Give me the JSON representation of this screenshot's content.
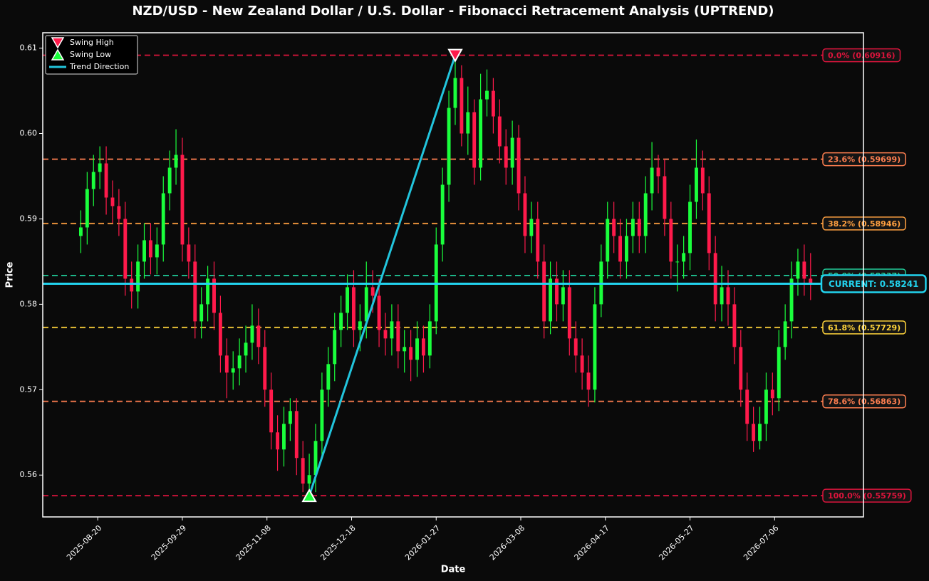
{
  "chart_data": {
    "type": "candlestick",
    "title": "NZD/USD - New Zealand Dollar / U.S. Dollar - Fibonacci Retracement Analysis (UPTREND)",
    "xlabel": "Date",
    "ylabel": "Price",
    "x": [
      "2025-08-12",
      "2025-08-15",
      "2025-08-18",
      "2025-08-21",
      "2025-08-24",
      "2025-08-27",
      "2025-08-30",
      "2025-09-02",
      "2025-09-05",
      "2025-09-08",
      "2025-09-11",
      "2025-09-14",
      "2025-09-17",
      "2025-09-20",
      "2025-09-23",
      "2025-09-26",
      "2025-09-29",
      "2025-10-02",
      "2025-10-05",
      "2025-10-08",
      "2025-10-11",
      "2025-10-14",
      "2025-10-17",
      "2025-10-20",
      "2025-10-23",
      "2025-10-26",
      "2025-10-29",
      "2025-11-01",
      "2025-11-04",
      "2025-11-07",
      "2025-11-10",
      "2025-11-13",
      "2025-11-16",
      "2025-11-19",
      "2025-11-22",
      "2025-11-25",
      "2025-11-28",
      "2025-12-01",
      "2025-12-04",
      "2025-12-07",
      "2025-12-10",
      "2025-12-13",
      "2025-12-16",
      "2025-12-19",
      "2025-12-22",
      "2025-12-25",
      "2025-12-28",
      "2025-12-31",
      "2026-01-03",
      "2026-01-06",
      "2026-01-09",
      "2026-01-12",
      "2026-01-15",
      "2026-01-18",
      "2026-01-21",
      "2026-01-24",
      "2026-01-27",
      "2026-01-30",
      "2026-02-02",
      "2026-02-05",
      "2026-02-08",
      "2026-02-11",
      "2026-02-14",
      "2026-02-17",
      "2026-02-20",
      "2026-02-23",
      "2026-02-26",
      "2026-03-01",
      "2026-03-04",
      "2026-03-07",
      "2026-03-10",
      "2026-03-13",
      "2026-03-16",
      "2026-03-19",
      "2026-03-22",
      "2026-03-25",
      "2026-03-28",
      "2026-03-31",
      "2026-04-03",
      "2026-04-06",
      "2026-04-09",
      "2026-04-12",
      "2026-04-15",
      "2026-04-18",
      "2026-04-21",
      "2026-04-24",
      "2026-04-27",
      "2026-04-30",
      "2026-05-03",
      "2026-05-06",
      "2026-05-09",
      "2026-05-12",
      "2026-05-15",
      "2026-05-18",
      "2026-05-21",
      "2026-05-24",
      "2026-05-27",
      "2026-05-30",
      "2026-06-02",
      "2026-06-05",
      "2026-06-08",
      "2026-06-11",
      "2026-06-14",
      "2026-06-17",
      "2026-06-20",
      "2026-06-23",
      "2026-06-26",
      "2026-06-29",
      "2026-07-02",
      "2026-07-05",
      "2026-07-08",
      "2026-07-11",
      "2026-07-14",
      "2026-07-17",
      "2026-07-20",
      "2026-07-23"
    ],
    "open": [
      0.588,
      0.589,
      0.5935,
      0.5955,
      0.5965,
      0.5925,
      0.5915,
      0.59,
      0.583,
      0.5815,
      0.585,
      0.5875,
      0.5855,
      0.587,
      0.593,
      0.596,
      0.5975,
      0.587,
      0.585,
      0.578,
      0.58,
      0.583,
      0.579,
      0.574,
      0.572,
      0.5725,
      0.574,
      0.5755,
      0.5775,
      0.575,
      0.57,
      0.565,
      0.563,
      0.566,
      0.5675,
      0.562,
      0.559,
      0.56,
      0.564,
      0.57,
      0.573,
      0.577,
      0.579,
      0.582,
      0.577,
      0.578,
      0.582,
      0.581,
      0.577,
      0.576,
      0.578,
      0.5745,
      0.575,
      0.5735,
      0.576,
      0.574,
      0.578,
      0.587,
      0.594,
      0.603,
      0.6065,
      0.6,
      0.6025,
      0.596,
      0.604,
      0.605,
      0.602,
      0.5985,
      0.596,
      0.5995,
      0.593,
      0.588,
      0.59,
      0.585,
      0.578,
      0.583,
      0.58,
      0.582,
      0.576,
      0.574,
      0.572,
      0.57,
      0.58,
      0.585,
      0.59,
      0.588,
      0.585,
      0.588,
      0.59,
      0.588,
      0.593,
      0.596,
      0.595,
      0.59,
      0.585,
      0.585,
      0.586,
      0.592,
      0.596,
      0.593,
      0.586,
      0.58,
      0.582,
      0.58,
      0.575,
      0.57,
      0.566,
      0.564,
      0.566,
      0.57,
      0.569,
      0.575,
      0.578,
      0.583,
      0.585,
      0.583
    ],
    "high": [
      0.591,
      0.5955,
      0.5975,
      0.5985,
      0.5985,
      0.5945,
      0.5935,
      0.592,
      0.585,
      0.587,
      0.5895,
      0.5895,
      0.589,
      0.595,
      0.598,
      0.6005,
      0.5995,
      0.589,
      0.587,
      0.582,
      0.5845,
      0.585,
      0.581,
      0.576,
      0.5745,
      0.576,
      0.5775,
      0.58,
      0.5795,
      0.577,
      0.572,
      0.567,
      0.568,
      0.569,
      0.569,
      0.564,
      0.5625,
      0.566,
      0.572,
      0.575,
      0.579,
      0.581,
      0.5835,
      0.584,
      0.58,
      0.585,
      0.584,
      0.583,
      0.579,
      0.58,
      0.58,
      0.577,
      0.577,
      0.578,
      0.5775,
      0.58,
      0.589,
      0.596,
      0.605,
      0.60916,
      0.608,
      0.6055,
      0.604,
      0.607,
      0.6075,
      0.6065,
      0.604,
      0.6005,
      0.6015,
      0.601,
      0.595,
      0.592,
      0.592,
      0.587,
      0.585,
      0.585,
      0.584,
      0.584,
      0.578,
      0.576,
      0.574,
      0.582,
      0.587,
      0.592,
      0.592,
      0.59,
      0.59,
      0.592,
      0.592,
      0.595,
      0.599,
      0.5975,
      0.597,
      0.592,
      0.587,
      0.588,
      0.594,
      0.5993,
      0.598,
      0.595,
      0.588,
      0.5845,
      0.584,
      0.582,
      0.577,
      0.572,
      0.568,
      0.568,
      0.572,
      0.572,
      0.577,
      0.58,
      0.585,
      0.5865,
      0.587,
      0.586
    ],
    "low": [
      0.586,
      0.587,
      0.5915,
      0.5935,
      0.5905,
      0.5895,
      0.588,
      0.581,
      0.5795,
      0.5795,
      0.583,
      0.5835,
      0.5835,
      0.585,
      0.591,
      0.594,
      0.585,
      0.583,
      0.576,
      0.576,
      0.578,
      0.577,
      0.572,
      0.569,
      0.57,
      0.5705,
      0.572,
      0.5735,
      0.573,
      0.568,
      0.563,
      0.5605,
      0.561,
      0.564,
      0.56,
      0.558,
      0.55759,
      0.558,
      0.562,
      0.568,
      0.571,
      0.575,
      0.577,
      0.575,
      0.5745,
      0.576,
      0.579,
      0.575,
      0.574,
      0.574,
      0.5725,
      0.572,
      0.571,
      0.5715,
      0.572,
      0.5725,
      0.5765,
      0.585,
      0.592,
      0.601,
      0.5985,
      0.5975,
      0.594,
      0.5945,
      0.602,
      0.6,
      0.5965,
      0.594,
      0.594,
      0.591,
      0.586,
      0.586,
      0.583,
      0.576,
      0.5765,
      0.578,
      0.578,
      0.574,
      0.572,
      0.57,
      0.568,
      0.5685,
      0.5785,
      0.583,
      0.586,
      0.583,
      0.583,
      0.586,
      0.586,
      0.586,
      0.591,
      0.593,
      0.588,
      0.583,
      0.5815,
      0.583,
      0.584,
      0.59,
      0.591,
      0.584,
      0.578,
      0.578,
      0.5775,
      0.573,
      0.568,
      0.564,
      0.5627,
      0.563,
      0.564,
      0.567,
      0.5675,
      0.5735,
      0.576,
      0.581,
      0.581,
      0.5805
    ],
    "close": [
      0.589,
      0.5935,
      0.5955,
      0.5965,
      0.5925,
      0.5915,
      0.59,
      0.583,
      0.5815,
      0.585,
      0.5875,
      0.5855,
      0.587,
      0.593,
      0.596,
      0.5975,
      0.587,
      0.585,
      0.578,
      0.58,
      0.583,
      0.579,
      0.574,
      0.572,
      0.5725,
      0.574,
      0.5755,
      0.5775,
      0.575,
      0.57,
      0.565,
      0.563,
      0.566,
      0.5675,
      0.562,
      0.559,
      0.56,
      0.564,
      0.57,
      0.573,
      0.577,
      0.579,
      0.582,
      0.577,
      0.578,
      0.582,
      0.581,
      0.577,
      0.576,
      0.578,
      0.5745,
      0.575,
      0.5735,
      0.576,
      0.574,
      0.578,
      0.587,
      0.594,
      0.603,
      0.6065,
      0.6,
      0.6025,
      0.596,
      0.604,
      0.605,
      0.602,
      0.5985,
      0.596,
      0.5995,
      0.593,
      0.588,
      0.59,
      0.585,
      0.578,
      0.583,
      0.58,
      0.582,
      0.576,
      0.574,
      0.572,
      0.57,
      0.58,
      0.585,
      0.59,
      0.588,
      0.585,
      0.588,
      0.59,
      0.588,
      0.593,
      0.596,
      0.595,
      0.59,
      0.585,
      0.585,
      0.586,
      0.592,
      0.596,
      0.593,
      0.586,
      0.58,
      0.582,
      0.58,
      0.575,
      0.57,
      0.566,
      0.564,
      0.566,
      0.57,
      0.569,
      0.575,
      0.578,
      0.583,
      0.585,
      0.583,
      0.5824
    ],
    "up_color": "#1aff3c",
    "down_color": "#ff1a4b",
    "xlim": [
      "2025-07-25",
      "2026-08-17"
    ],
    "xticks": [
      "2025-08-20",
      "2025-09-29",
      "2025-11-08",
      "2025-12-18",
      "2026-01-27",
      "2026-03-08",
      "2026-04-17",
      "2026-05-27",
      "2026-07-06"
    ],
    "ylim": [
      0.5551,
      0.6118
    ],
    "yticks": [
      0.56,
      0.57,
      0.58,
      0.59,
      {
        "value": 0.6,
        "label": "0.60"
      },
      0.61
    ],
    "fib_levels": [
      {
        "value": 0.60916,
        "label": "0.0% (0.60916)",
        "color": "#dc143c"
      },
      {
        "value": 0.59699,
        "label": "23.6% (0.59699)",
        "color": "#ff7f50"
      },
      {
        "value": 0.58946,
        "label": "38.2% (0.58946)",
        "color": "#ffa040"
      },
      {
        "value": 0.58337,
        "label": "50.0% (0.58337)",
        "color": "#20c997"
      },
      {
        "value": 0.57729,
        "label": "61.8% (0.57729)",
        "color": "#ffd43b"
      },
      {
        "value": 0.56863,
        "label": "78.6% (0.56863)",
        "color": "#ff7f50"
      },
      {
        "value": 0.55759,
        "label": "100.0% (0.55759)",
        "color": "#dc143c"
      }
    ],
    "current": {
      "value": 0.58241,
      "label": "CURRENT: 0.58241",
      "color": "#22d3ee"
    },
    "swing_high": {
      "name": "Swing High",
      "x": "2026-02-05",
      "value": 0.60916,
      "color": "#ff1a4b"
    },
    "swing_low": {
      "name": "Swing Low",
      "x": "2025-11-28",
      "value": 0.55759,
      "color": "#1aff3c"
    },
    "trend": {
      "name": "Trend Direction",
      "color": "#22c5dd"
    },
    "legend": "upper left"
  }
}
